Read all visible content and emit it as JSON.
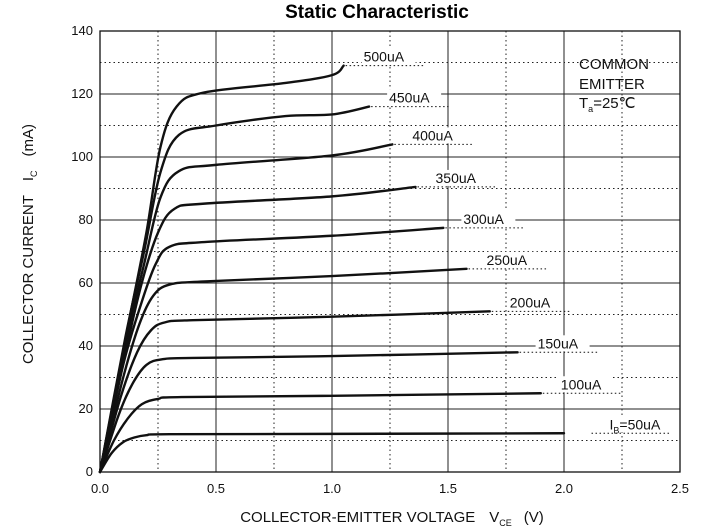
{
  "chart_data": {
    "type": "line",
    "title": "Static Characteristic",
    "xlabel": "COLLECTOR-EMITTER VOLTAGE",
    "xlabel_symbol": "V",
    "xlabel_sub": "CE",
    "xlabel_unit": "(V)",
    "ylabel": "COLLECTOR CURRENT",
    "ylabel_symbol": "I",
    "ylabel_sub": "C",
    "ylabel_unit": "(mA)",
    "xlim": [
      0,
      2.5
    ],
    "ylim": [
      0,
      140
    ],
    "x_ticks": [
      "0.0",
      "0.5",
      "1.0",
      "1.5",
      "2.0",
      "2.5"
    ],
    "y_ticks": [
      "0",
      "20",
      "40",
      "60",
      "80",
      "100",
      "120",
      "140"
    ],
    "x_tick_values": [
      0,
      0.5,
      1.0,
      1.5,
      2.0,
      2.5
    ],
    "y_tick_values": [
      0,
      20,
      40,
      60,
      80,
      100,
      120,
      140
    ],
    "x_minor_values": [
      0.25,
      0.75,
      1.25,
      1.75,
      2.25
    ],
    "y_minor_values": [
      10,
      30,
      50,
      70,
      90,
      110,
      130
    ],
    "grid": true,
    "annotation": {
      "line1": "COMMON",
      "line2": "EMITTER",
      "line3_main": "T",
      "line3_sub": "a",
      "line3_rest": "=25℃"
    },
    "series": [
      {
        "name": "50uA",
        "label_prefix": "I",
        "label_sub": "B",
        "label_main": "=50uA",
        "points": [
          [
            0,
            0
          ],
          [
            0.05,
            6
          ],
          [
            0.1,
            9.5
          ],
          [
            0.15,
            11
          ],
          [
            0.2,
            11.7
          ],
          [
            0.3,
            12
          ],
          [
            1.0,
            12.1
          ],
          [
            2.0,
            12.3
          ]
        ]
      },
      {
        "name": "100uA",
        "label": "100uA",
        "points": [
          [
            0,
            0
          ],
          [
            0.06,
            10
          ],
          [
            0.12,
            17
          ],
          [
            0.18,
            21.5
          ],
          [
            0.25,
            23.2
          ],
          [
            0.35,
            23.8
          ],
          [
            1.0,
            24.2
          ],
          [
            1.9,
            25
          ]
        ]
      },
      {
        "name": "150uA",
        "label": "150uA",
        "points": [
          [
            0,
            0
          ],
          [
            0.08,
            18
          ],
          [
            0.14,
            28
          ],
          [
            0.2,
            34
          ],
          [
            0.27,
            35.8
          ],
          [
            0.4,
            36.2
          ],
          [
            1.0,
            36.8
          ],
          [
            1.8,
            38
          ]
        ]
      },
      {
        "name": "200uA",
        "label": "200uA",
        "points": [
          [
            0,
            0
          ],
          [
            0.09,
            24
          ],
          [
            0.16,
            38
          ],
          [
            0.22,
            45
          ],
          [
            0.28,
            47.5
          ],
          [
            0.4,
            48.2
          ],
          [
            1.0,
            49.3
          ],
          [
            1.68,
            51
          ]
        ]
      },
      {
        "name": "250uA",
        "label": "250uA",
        "points": [
          [
            0,
            0
          ],
          [
            0.1,
            30
          ],
          [
            0.17,
            47
          ],
          [
            0.23,
            56
          ],
          [
            0.3,
            59.5
          ],
          [
            0.45,
            60.5
          ],
          [
            1.0,
            62.2
          ],
          [
            1.58,
            64.5
          ]
        ]
      },
      {
        "name": "300uA",
        "label": "300uA",
        "points": [
          [
            0,
            0
          ],
          [
            0.1,
            34
          ],
          [
            0.18,
            54
          ],
          [
            0.24,
            66
          ],
          [
            0.3,
            71.5
          ],
          [
            0.45,
            73
          ],
          [
            1.0,
            75
          ],
          [
            1.48,
            77.5
          ]
        ]
      },
      {
        "name": "350uA",
        "label": "350uA",
        "points": [
          [
            0,
            0
          ],
          [
            0.11,
            38
          ],
          [
            0.18,
            60
          ],
          [
            0.25,
            76
          ],
          [
            0.32,
            83.5
          ],
          [
            0.45,
            85.2
          ],
          [
            1.0,
            87.5
          ],
          [
            1.36,
            90.5
          ]
        ]
      },
      {
        "name": "400uA",
        "label": "400uA",
        "points": [
          [
            0,
            0
          ],
          [
            0.11,
            41
          ],
          [
            0.19,
            66
          ],
          [
            0.26,
            87
          ],
          [
            0.34,
            95.5
          ],
          [
            0.5,
            97.5
          ],
          [
            1.0,
            100.5
          ],
          [
            1.26,
            104
          ]
        ]
      },
      {
        "name": "450uA",
        "label": "450uA",
        "points": [
          [
            0,
            0
          ],
          [
            0.11,
            43
          ],
          [
            0.19,
            70
          ],
          [
            0.26,
            95
          ],
          [
            0.34,
            107
          ],
          [
            0.5,
            110
          ],
          [
            0.8,
            113
          ],
          [
            1.0,
            113.5
          ],
          [
            1.16,
            116
          ]
        ]
      },
      {
        "name": "500uA",
        "label": "500uA",
        "points": [
          [
            0,
            0
          ],
          [
            0.12,
            46
          ],
          [
            0.2,
            76
          ],
          [
            0.26,
            103
          ],
          [
            0.33,
            116
          ],
          [
            0.45,
            120.5
          ],
          [
            0.8,
            123.5
          ],
          [
            1.0,
            126
          ],
          [
            1.05,
            129
          ]
        ]
      }
    ],
    "label_anchors": [
      [
        2.11,
        12.3
      ],
      [
        1.9,
        25
      ],
      [
        1.8,
        38
      ],
      [
        1.68,
        51
      ],
      [
        1.58,
        64.5
      ],
      [
        1.48,
        77.5
      ],
      [
        1.36,
        90.5
      ],
      [
        1.26,
        104
      ],
      [
        1.16,
        116
      ],
      [
        1.05,
        129
      ]
    ]
  }
}
